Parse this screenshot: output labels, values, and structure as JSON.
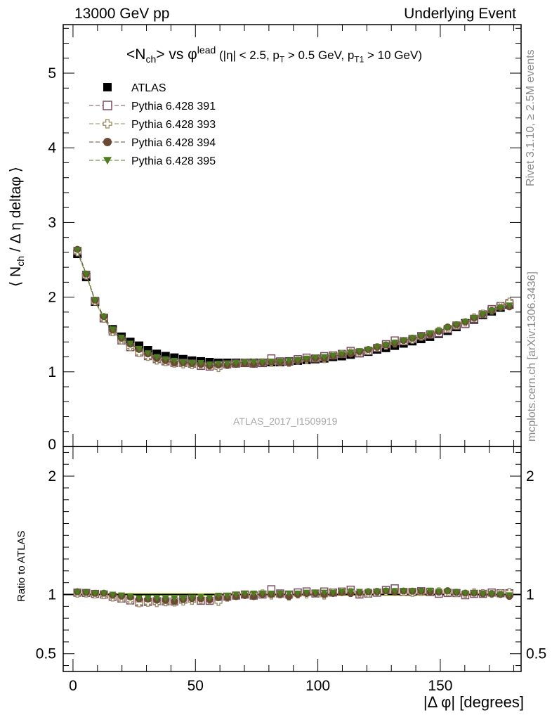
{
  "header": {
    "left": "13000 GeV pp",
    "right": "Underlying Event"
  },
  "side_labels": {
    "rivet": "Rivet 3.1.10, ≥ 2.5M events",
    "mcplots": "mcplots.cern.ch [arXiv:1306.3436]"
  },
  "watermark": "ATLAS_2017_I1509919",
  "colors": {
    "atlas": "#000000",
    "p391": "#7a4f63",
    "p393": "#9c8a64",
    "p394": "#6b4a33",
    "p395": "#4e7d1f",
    "band_yellow": "#f5f59a",
    "band_green": "#9be36b"
  },
  "chart_data": [
    {
      "type": "scatter",
      "panel": "main",
      "title": "<N_ch> vs φ^lead (|η| < 2.5, p_T > 0.5 GeV, p_T1 > 10 GeV)",
      "xlabel": "",
      "ylabel": "⟨ N_ch / Δη deltaφ ⟩",
      "xlim": [
        -4,
        183
      ],
      "ylim": [
        0,
        5.65
      ],
      "yticks": [
        0,
        1,
        2,
        3,
        4,
        5
      ],
      "legend_position": "top-left",
      "x": [
        1.8,
        5.4,
        9.0,
        12.6,
        16.2,
        19.8,
        23.4,
        27.0,
        30.6,
        34.2,
        37.8,
        41.4,
        45.0,
        48.6,
        52.2,
        55.8,
        59.4,
        63.0,
        66.6,
        70.2,
        73.8,
        77.4,
        81.0,
        84.6,
        88.2,
        91.8,
        95.4,
        99.0,
        102.6,
        106.2,
        109.8,
        113.4,
        117.0,
        120.6,
        124.2,
        127.8,
        131.4,
        135.0,
        138.6,
        142.2,
        145.8,
        149.4,
        153.0,
        156.6,
        160.2,
        163.8,
        167.4,
        171.0,
        174.6,
        178.2
      ],
      "series": [
        {
          "name": "ATLAS",
          "marker": "square-filled",
          "values": [
            2.58,
            2.27,
            1.94,
            1.72,
            1.57,
            1.47,
            1.4,
            1.35,
            1.29,
            1.24,
            1.21,
            1.19,
            1.17,
            1.15,
            1.14,
            1.13,
            1.12,
            1.12,
            1.12,
            1.12,
            1.12,
            1.12,
            1.13,
            1.13,
            1.14,
            1.15,
            1.16,
            1.17,
            1.18,
            1.2,
            1.21,
            1.23,
            1.25,
            1.27,
            1.3,
            1.32,
            1.35,
            1.38,
            1.41,
            1.44,
            1.47,
            1.51,
            1.55,
            1.6,
            1.65,
            1.7,
            1.76,
            1.81,
            1.86,
            1.9
          ]
        },
        {
          "name": "Pythia 6.428 391",
          "marker": "square-open",
          "values": [
            2.62,
            2.3,
            1.95,
            1.72,
            1.54,
            1.42,
            1.33,
            1.26,
            1.21,
            1.17,
            1.14,
            1.12,
            1.12,
            1.11,
            1.08,
            1.07,
            1.09,
            1.1,
            1.11,
            1.12,
            1.11,
            1.12,
            1.18,
            1.14,
            1.14,
            1.17,
            1.19,
            1.18,
            1.21,
            1.22,
            1.24,
            1.28,
            1.25,
            1.28,
            1.32,
            1.37,
            1.42,
            1.41,
            1.44,
            1.48,
            1.5,
            1.52,
            1.57,
            1.62,
            1.64,
            1.71,
            1.77,
            1.84,
            1.88,
            1.92
          ]
        },
        {
          "name": "Pythia 6.428 393",
          "marker": "cross-open",
          "values": [
            2.6,
            2.29,
            1.94,
            1.71,
            1.53,
            1.42,
            1.33,
            1.25,
            1.2,
            1.15,
            1.13,
            1.11,
            1.1,
            1.09,
            1.09,
            1.08,
            1.05,
            1.09,
            1.11,
            1.12,
            1.12,
            1.13,
            1.12,
            1.13,
            1.12,
            1.15,
            1.16,
            1.18,
            1.17,
            1.22,
            1.24,
            1.26,
            1.26,
            1.28,
            1.33,
            1.35,
            1.38,
            1.41,
            1.43,
            1.47,
            1.5,
            1.55,
            1.58,
            1.62,
            1.66,
            1.73,
            1.78,
            1.82,
            1.88,
            1.94
          ]
        },
        {
          "name": "Pythia 6.428 394",
          "marker": "circle-filled",
          "values": [
            2.64,
            2.31,
            1.96,
            1.74,
            1.56,
            1.45,
            1.37,
            1.3,
            1.24,
            1.18,
            1.15,
            1.12,
            1.12,
            1.11,
            1.1,
            1.08,
            1.09,
            1.09,
            1.1,
            1.11,
            1.1,
            1.12,
            1.13,
            1.13,
            1.12,
            1.15,
            1.17,
            1.18,
            1.18,
            1.21,
            1.23,
            1.24,
            1.27,
            1.3,
            1.33,
            1.36,
            1.38,
            1.42,
            1.45,
            1.48,
            1.5,
            1.54,
            1.6,
            1.63,
            1.67,
            1.72,
            1.77,
            1.82,
            1.86,
            1.87
          ]
        },
        {
          "name": "Pythia 6.428 395",
          "marker": "triangle-down-filled",
          "values": [
            2.63,
            2.31,
            1.96,
            1.74,
            1.57,
            1.46,
            1.38,
            1.31,
            1.25,
            1.2,
            1.17,
            1.15,
            1.13,
            1.12,
            1.12,
            1.1,
            1.11,
            1.11,
            1.12,
            1.13,
            1.13,
            1.13,
            1.14,
            1.14,
            1.15,
            1.16,
            1.18,
            1.19,
            1.2,
            1.22,
            1.24,
            1.26,
            1.28,
            1.3,
            1.33,
            1.36,
            1.39,
            1.42,
            1.45,
            1.48,
            1.52,
            1.55,
            1.59,
            1.63,
            1.67,
            1.72,
            1.77,
            1.82,
            1.86,
            1.89
          ]
        }
      ]
    },
    {
      "type": "scatter",
      "panel": "ratio",
      "xlabel": "|Δ φ| [degrees]",
      "ylabel": "Ratio to ATLAS",
      "xlim": [
        -4,
        183
      ],
      "ylim": [
        0.35,
        2.25
      ],
      "yticks": [
        0.5,
        1,
        2
      ],
      "xticks": [
        0,
        50,
        100,
        150
      ],
      "reference_line": 1,
      "band": {
        "yellow": 0.015,
        "green": 0.008
      }
    }
  ]
}
